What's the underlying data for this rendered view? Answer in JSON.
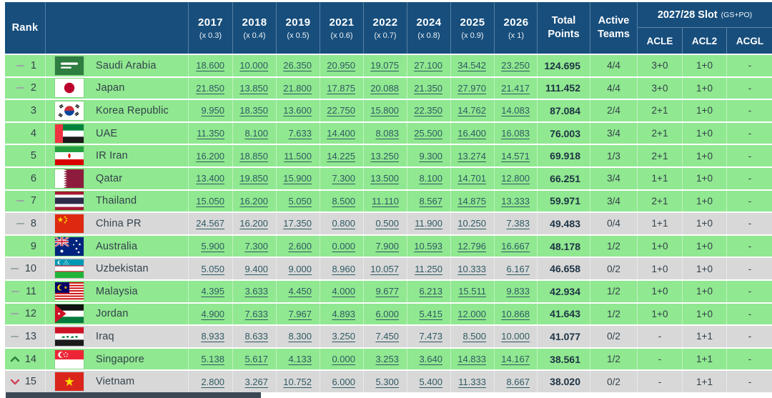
{
  "colors": {
    "header_bg": "#174e7c",
    "header_text": "#ffffff",
    "row_green": "#90e890",
    "row_grey": "#d8d8d8",
    "link_text": "#2f5a63",
    "total_text": "#1d3344",
    "body_text": "#33414b",
    "up_arrow": "#2e7d3c",
    "down_arrow": "#cf4458",
    "dash": "#9aa8a4"
  },
  "table": {
    "header": {
      "rank_label": "Rank",
      "team_label": "",
      "years": [
        {
          "year": "2017",
          "multiplier": "(x 0.3)"
        },
        {
          "year": "2018",
          "multiplier": "(x 0.4)"
        },
        {
          "year": "2019",
          "multiplier": "(x 0.5)"
        },
        {
          "year": "2021",
          "multiplier": "(x 0.6)"
        },
        {
          "year": "2022",
          "multiplier": "(x 0.7)"
        },
        {
          "year": "2024",
          "multiplier": "(x 0.8)"
        },
        {
          "year": "2025",
          "multiplier": "(x 0.9)"
        },
        {
          "year": "2026",
          "multiplier": "(x 1)"
        }
      ],
      "total_label_line1": "Total",
      "total_label_line2": "Points",
      "active_label_line1": "Active",
      "active_label_line2": "Teams",
      "slot_group_label": "2027/28 Slot",
      "slot_group_suffix": "(GS+PO)",
      "slot_columns": [
        "ACLE",
        "ACL2",
        "ACGL"
      ]
    },
    "rows": [
      {
        "rank": "1",
        "movement": "same",
        "country": "Saudi Arabia",
        "flag": "saudi-arabia",
        "highlight": "green",
        "values": [
          "18.600",
          "10.000",
          "26.350",
          "20.950",
          "19.075",
          "27.100",
          "34.542",
          "23.250"
        ],
        "total": "124.695",
        "active": "4/4",
        "slots": [
          "3+0",
          "1+0",
          "-"
        ]
      },
      {
        "rank": "2",
        "movement": "same",
        "country": "Japan",
        "flag": "japan",
        "highlight": "green",
        "values": [
          "21.850",
          "13.850",
          "21.800",
          "17.875",
          "20.088",
          "21.350",
          "27.970",
          "21.417"
        ],
        "total": "111.452",
        "active": "4/4",
        "slots": [
          "3+0",
          "1+0",
          "-"
        ]
      },
      {
        "rank": "3",
        "movement": "none",
        "country": "Korea Republic",
        "flag": "korea-republic",
        "highlight": "green",
        "values": [
          "9.950",
          "18.350",
          "13.600",
          "22.750",
          "15.800",
          "22.350",
          "14.762",
          "14.083"
        ],
        "total": "87.084",
        "active": "2/4",
        "slots": [
          "2+1",
          "1+0",
          "-"
        ]
      },
      {
        "rank": "4",
        "movement": "none",
        "country": "UAE",
        "flag": "uae",
        "highlight": "green",
        "values": [
          "11.350",
          "8.100",
          "7.633",
          "14.400",
          "8.083",
          "25.500",
          "16.400",
          "16.083"
        ],
        "total": "76.003",
        "active": "3/4",
        "slots": [
          "2+1",
          "1+0",
          "-"
        ]
      },
      {
        "rank": "5",
        "movement": "none",
        "country": "IR Iran",
        "flag": "ir-iran",
        "highlight": "green",
        "values": [
          "16.200",
          "18.850",
          "11.500",
          "14.225",
          "13.250",
          "9.300",
          "13.274",
          "14.571"
        ],
        "total": "69.918",
        "active": "1/3",
        "slots": [
          "2+1",
          "1+0",
          "-"
        ]
      },
      {
        "rank": "6",
        "movement": "none",
        "country": "Qatar",
        "flag": "qatar",
        "highlight": "green",
        "values": [
          "13.400",
          "19.850",
          "15.900",
          "7.300",
          "13.500",
          "8.100",
          "14.701",
          "12.800"
        ],
        "total": "66.251",
        "active": "3/4",
        "slots": [
          "1+1",
          "1+0",
          "-"
        ]
      },
      {
        "rank": "7",
        "movement": "same",
        "country": "Thailand",
        "flag": "thailand",
        "highlight": "green",
        "values": [
          "15.050",
          "16.200",
          "5.050",
          "8.500",
          "11.110",
          "8.567",
          "14.875",
          "13.333"
        ],
        "total": "59.971",
        "active": "3/4",
        "slots": [
          "2+1",
          "1+0",
          "-"
        ]
      },
      {
        "rank": "8",
        "movement": "same",
        "country": "China PR",
        "flag": "china-pr",
        "highlight": "grey",
        "values": [
          "24.567",
          "16.200",
          "17.350",
          "0.800",
          "0.500",
          "11.900",
          "10.250",
          "7.383"
        ],
        "total": "49.483",
        "active": "0/4",
        "slots": [
          "1+1",
          "1+0",
          "-"
        ]
      },
      {
        "rank": "9",
        "movement": "none",
        "country": "Australia",
        "flag": "australia",
        "highlight": "green",
        "values": [
          "5.900",
          "7.300",
          "2.600",
          "0.000",
          "7.900",
          "10.593",
          "12.796",
          "16.667"
        ],
        "total": "48.178",
        "active": "1/2",
        "slots": [
          "1+0",
          "1+0",
          "-"
        ]
      },
      {
        "rank": "10",
        "movement": "same",
        "country": "Uzbekistan",
        "flag": "uzbekistan",
        "highlight": "grey",
        "values": [
          "5.050",
          "9.400",
          "9.000",
          "8.960",
          "10.057",
          "11.250",
          "10.333",
          "6.167"
        ],
        "total": "46.658",
        "active": "0/2",
        "slots": [
          "1+0",
          "1+0",
          "-"
        ]
      },
      {
        "rank": "11",
        "movement": "same",
        "country": "Malaysia",
        "flag": "malaysia",
        "highlight": "green",
        "values": [
          "4.395",
          "3.633",
          "4.450",
          "4.000",
          "9.677",
          "6.213",
          "15.511",
          "9.833"
        ],
        "total": "42.934",
        "active": "1/2",
        "slots": [
          "1+0",
          "1+0",
          "-"
        ]
      },
      {
        "rank": "12",
        "movement": "same",
        "country": "Jordan",
        "flag": "jordan",
        "highlight": "green",
        "values": [
          "4.900",
          "7.633",
          "7.967",
          "4.893",
          "6.000",
          "5.415",
          "12.000",
          "10.868"
        ],
        "total": "41.643",
        "active": "1/2",
        "slots": [
          "1+0",
          "1+0",
          "-"
        ]
      },
      {
        "rank": "13",
        "movement": "same",
        "country": "Iraq",
        "flag": "iraq",
        "highlight": "grey",
        "values": [
          "8.933",
          "8.633",
          "8.300",
          "3.250",
          "7.450",
          "7.473",
          "8.500",
          "10.000"
        ],
        "total": "41.077",
        "active": "0/2",
        "slots": [
          "-",
          "1+1",
          "-"
        ]
      },
      {
        "rank": "14",
        "movement": "up",
        "country": "Singapore",
        "flag": "singapore",
        "highlight": "green",
        "values": [
          "5.138",
          "5.617",
          "4.133",
          "0.000",
          "3.253",
          "3.640",
          "14.833",
          "14.167"
        ],
        "total": "38.561",
        "active": "1/2",
        "slots": [
          "-",
          "1+1",
          "-"
        ]
      },
      {
        "rank": "15",
        "movement": "down",
        "country": "Vietnam",
        "flag": "vietnam",
        "highlight": "grey",
        "values": [
          "2.800",
          "3.267",
          "10.752",
          "6.000",
          "5.300",
          "5.400",
          "11.333",
          "8.667"
        ],
        "total": "38.020",
        "active": "0/2",
        "slots": [
          "-",
          "1+1",
          "-"
        ]
      }
    ]
  }
}
